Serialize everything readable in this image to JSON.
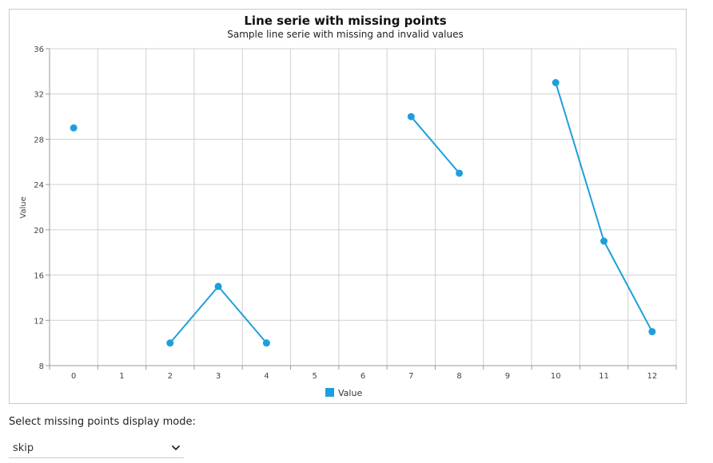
{
  "chart_data": {
    "type": "line",
    "title": "Line serie with missing points",
    "subtitle": "Sample line serie with missing and invalid values",
    "xlabel": "",
    "ylabel": "Value",
    "categories": [
      "0",
      "1",
      "2",
      "3",
      "4",
      "5",
      "6",
      "7",
      "8",
      "9",
      "10",
      "11",
      "12"
    ],
    "series": [
      {
        "name": "Value",
        "color": "#1e9fdb",
        "values": [
          29,
          null,
          10,
          15,
          10,
          null,
          null,
          30,
          25,
          null,
          33,
          19,
          11
        ]
      }
    ],
    "ylim": [
      8,
      36
    ],
    "yticks": [
      "8",
      "12",
      "16",
      "20",
      "24",
      "28",
      "32",
      "36"
    ],
    "grid": true,
    "legend_position": "bottom-center"
  },
  "controls": {
    "mode_label": "Select missing points display mode:",
    "mode_selected": "skip",
    "chevron_icon": "chevron-down-icon"
  }
}
